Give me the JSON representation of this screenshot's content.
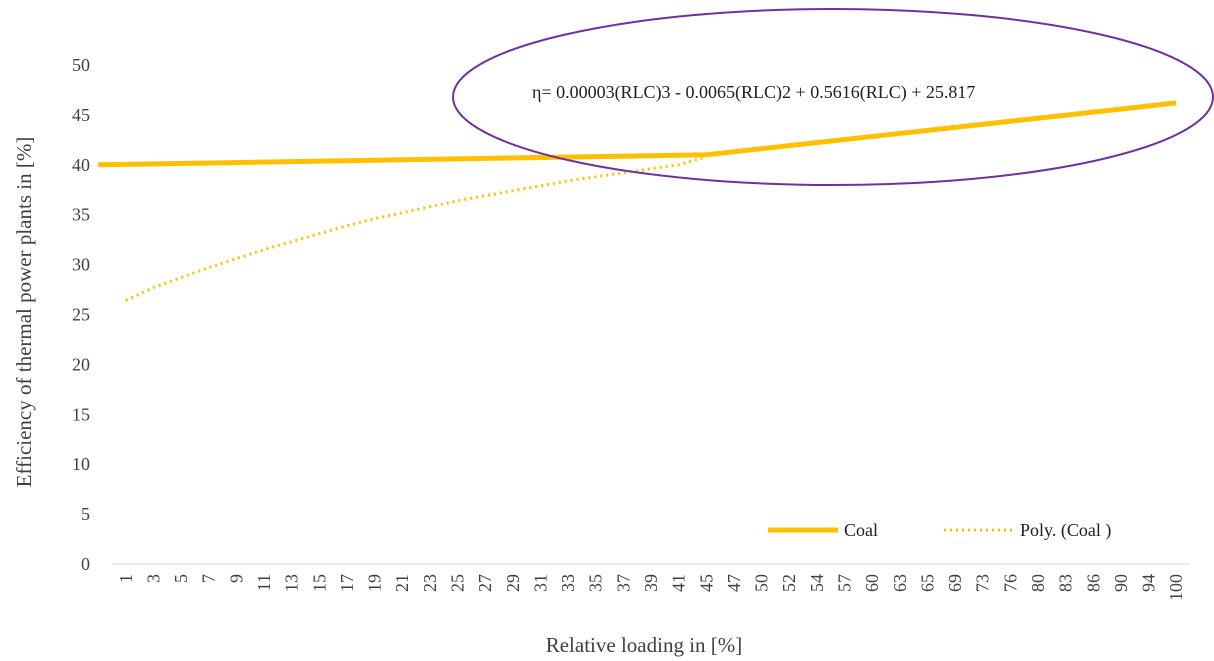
{
  "chart_data": {
    "type": "line",
    "xlabel": "Relative loading in [%]",
    "ylabel": "Efficiency of thermal power plants in [%]",
    "ylim": [
      0,
      50
    ],
    "y_ticks": [
      0,
      5,
      10,
      15,
      20,
      25,
      30,
      35,
      40,
      45,
      50
    ],
    "categories": [
      "1",
      "3",
      "5",
      "7",
      "9",
      "11",
      "13",
      "15",
      "17",
      "19",
      "21",
      "23",
      "25",
      "27",
      "29",
      "31",
      "33",
      "35",
      "37",
      "39",
      "41",
      "45",
      "47",
      "50",
      "52",
      "54",
      "57",
      "60",
      "63",
      "65",
      "69",
      "73",
      "76",
      "80",
      "83",
      "86",
      "90",
      "94",
      "100"
    ],
    "grid": false,
    "legend_position": "bottom-right",
    "series": [
      {
        "name": "Coal",
        "style": "solid",
        "color": "#FFC000",
        "x": [
          "40",
          "45",
          "100"
        ],
        "values": [
          40.0,
          41.0,
          46.2
        ]
      },
      {
        "name": "Poly. (Coal )",
        "style": "dotted",
        "color": "#FFC000",
        "x": [
          "1",
          "3",
          "5",
          "7",
          "9",
          "11",
          "13",
          "15",
          "17",
          "19",
          "21",
          "23",
          "25",
          "27",
          "29",
          "31",
          "33",
          "35",
          "37",
          "39",
          "41",
          "45"
        ],
        "values": [
          26.4,
          27.7,
          28.7,
          29.7,
          30.6,
          31.5,
          32.3,
          33.1,
          33.9,
          34.6,
          35.2,
          35.8,
          36.4,
          36.9,
          37.4,
          37.9,
          38.4,
          38.8,
          39.2,
          39.6,
          40.0,
          40.8
        ]
      }
    ],
    "annotation": {
      "text": "η= 0.00003(RLC)3 - 0.0065(RLC)2 + 0.5616(RLC) + 25.817",
      "highlight_color": "#7030A0"
    }
  }
}
